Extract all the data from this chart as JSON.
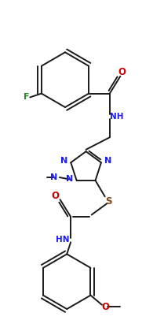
{
  "bg_color": "#ffffff",
  "line_color": "#1a1a1a",
  "nc": "#1a1aff",
  "oc": "#cc0000",
  "sc": "#8B4513",
  "fc": "#228B22",
  "lw": 1.4,
  "figsize": [
    1.95,
    4.25
  ],
  "dpi": 100,
  "xlim": [
    -1.5,
    2.5
  ],
  "ylim": [
    -4.5,
    3.5
  ]
}
